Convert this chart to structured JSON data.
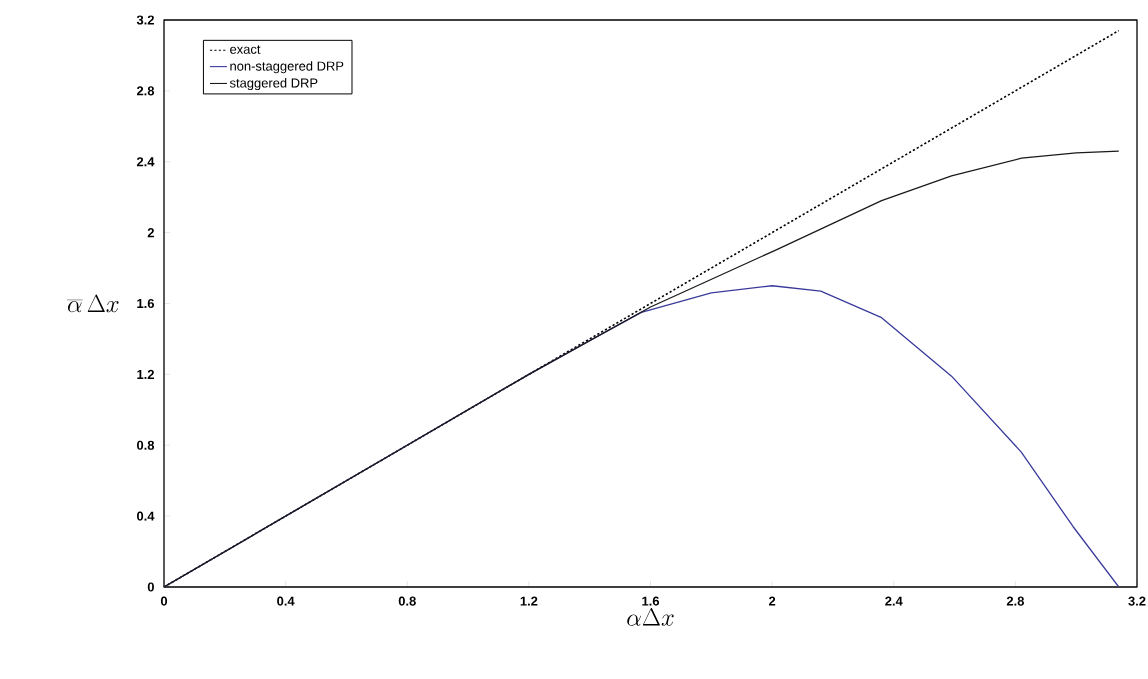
{
  "chart_data": {
    "type": "line",
    "xlabel": "\\alpha\\Delta x",
    "ylabel": "\\overline{\\alpha}\\,\\Delta x",
    "xlim": [
      0,
      3.2
    ],
    "ylim": [
      0,
      3.2
    ],
    "xticks": [
      0,
      0.4,
      0.8,
      1.2,
      1.6,
      2,
      2.4,
      2.8,
      3.2
    ],
    "yticks": [
      0,
      0.4,
      0.8,
      1.2,
      1.6,
      2,
      2.4,
      2.8,
      3.2
    ],
    "legend": "top left",
    "marker": "none",
    "series": [
      {
        "name": "exact",
        "color": "#000000",
        "line_style": "dotted",
        "x": [
          0,
          3.14
        ],
        "values": [
          0,
          3.14
        ]
      },
      {
        "name": "non-staggered DRP",
        "color": "#3a3a9c",
        "line_style": "solid",
        "x": [
          0,
          0.4,
          0.8,
          1.2,
          1.4,
          1.57,
          1.8,
          2.0,
          2.16,
          2.36,
          2.59,
          2.82,
          2.99,
          3.14
        ],
        "values": [
          0,
          0.4,
          0.8,
          1.2,
          1.39,
          1.55,
          1.66,
          1.7,
          1.67,
          1.52,
          1.19,
          0.76,
          0.34,
          0
        ]
      },
      {
        "name": "staggered DRP",
        "color": "#1a1a1a",
        "line_style": "solid",
        "x": [
          0,
          0.8,
          1.2,
          1.6,
          2.01,
          2.36,
          2.59,
          2.82,
          3.0,
          3.14
        ],
        "values": [
          0,
          0.8,
          1.2,
          1.58,
          1.9,
          2.18,
          2.32,
          2.42,
          2.45,
          2.46
        ]
      }
    ]
  }
}
